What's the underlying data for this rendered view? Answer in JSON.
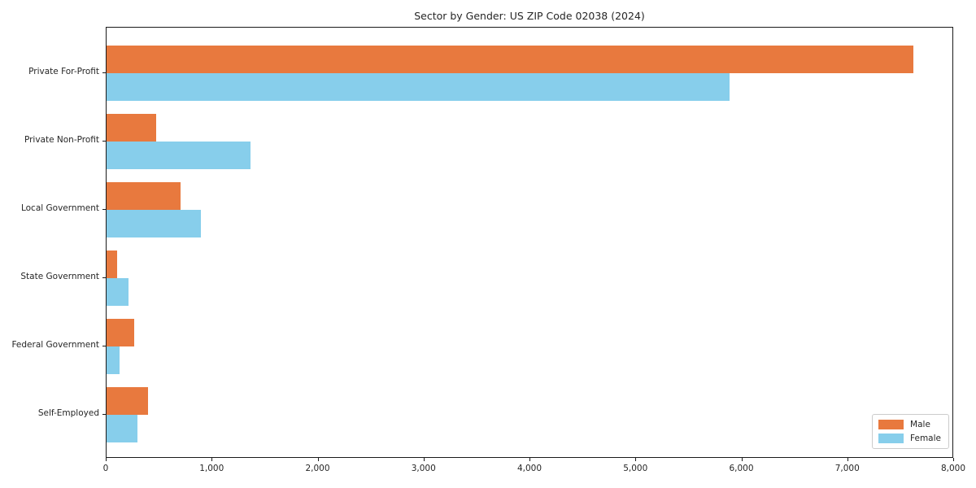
{
  "chart_data": {
    "type": "bar",
    "orientation": "horizontal",
    "title": "Sector by Gender: US ZIP Code 02038 (2024)",
    "categories": [
      "Private For-Profit",
      "Private Non-Profit",
      "Local Government",
      "State Government",
      "Federal Government",
      "Self-Employed"
    ],
    "series": [
      {
        "name": "Male",
        "color": "#E8793E",
        "values": [
          7630,
          470,
          700,
          100,
          265,
          395
        ]
      },
      {
        "name": "Female",
        "color": "#87CEEB",
        "values": [
          5890,
          1365,
          895,
          205,
          120,
          290
        ]
      }
    ],
    "xlabel": "",
    "ylabel": "",
    "xlim": [
      0,
      8000
    ],
    "x_ticks": [
      0,
      1000,
      2000,
      3000,
      4000,
      5000,
      6000,
      7000,
      8000
    ],
    "x_tick_labels": [
      "0",
      "1,000",
      "2,000",
      "3,000",
      "4,000",
      "5,000",
      "6,000",
      "7,000",
      "8,000"
    ],
    "grid": false,
    "legend": {
      "position": "lower right"
    }
  }
}
